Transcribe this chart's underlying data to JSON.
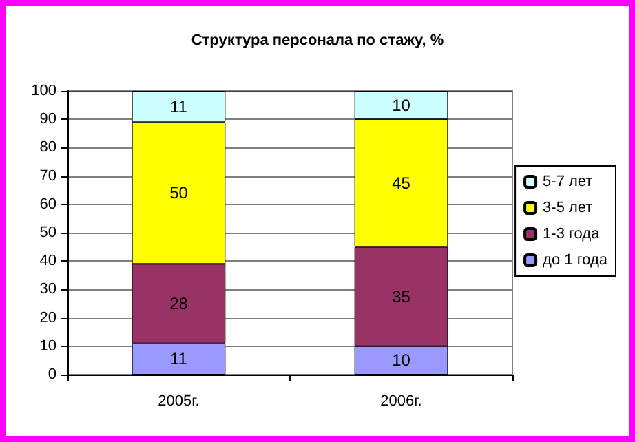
{
  "chart_data": {
    "type": "bar",
    "title": "Структура персонала по стажу, %",
    "categories": [
      "2005г.",
      "2006г."
    ],
    "stacked": true,
    "data_labels": true,
    "series": [
      {
        "name": "до 1 года",
        "color": "#9999ff",
        "values": [
          11,
          10
        ]
      },
      {
        "name": "1-3 года",
        "color": "#993366",
        "values": [
          28,
          35
        ]
      },
      {
        "name": "3-5 лет",
        "color": "#ffff00",
        "values": [
          50,
          45
        ]
      },
      {
        "name": "5-7 лет",
        "color": "#ccffff",
        "values": [
          11,
          10
        ]
      }
    ],
    "ylim": [
      0,
      100
    ],
    "yticks": [
      0,
      10,
      20,
      30,
      40,
      50,
      60,
      70,
      80,
      90,
      100
    ],
    "grid": "y",
    "legend": "right"
  }
}
